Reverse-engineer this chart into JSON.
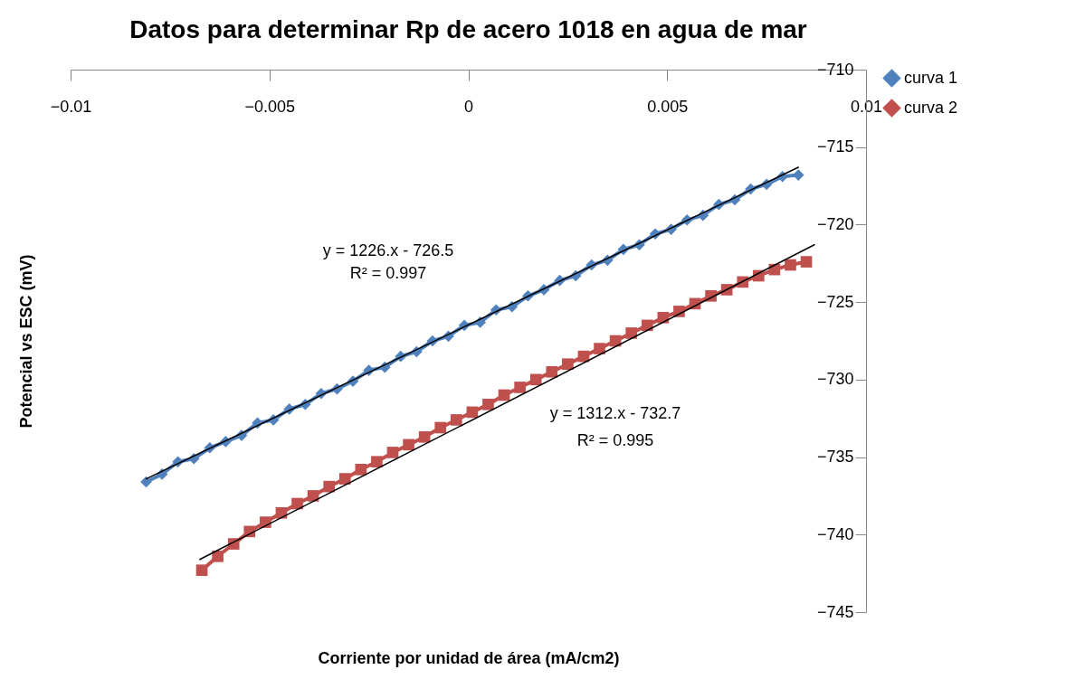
{
  "chart_data": {
    "type": "line",
    "title": "Datos para determinar Rp de acero 1018 en agua de mar",
    "xlabel": "Corriente por unidad de área (mA/cm2)",
    "ylabel": "Potencial vs ESC (mV)",
    "xlim": [
      -0.01,
      0.01
    ],
    "xticks": [
      -0.01,
      -0.005,
      0,
      0.005,
      0.01
    ],
    "ylim": [
      -745,
      -710
    ],
    "yticks": [
      -745,
      -740,
      -735,
      -730,
      -725,
      -720,
      -715,
      -710
    ],
    "grid": false,
    "legend": "right",
    "annotations": [
      "y = 1226.x - 726.5",
      "R² = 0.997",
      "y = 1312.x - 732.7",
      "R² = 0.995"
    ],
    "series": [
      {
        "name": "curva 1",
        "color": "#4f81bd",
        "marker": "diamond",
        "x": [
          -0.0081,
          -0.0077,
          -0.0073,
          -0.0069,
          -0.0065,
          -0.0061,
          -0.0057,
          -0.0053,
          -0.0049,
          -0.0045,
          -0.0041,
          -0.0037,
          -0.0033,
          -0.0029,
          -0.0025,
          -0.0021,
          -0.0017,
          -0.0013,
          -0.0009,
          -0.0005,
          -0.0001,
          0.0003,
          0.0007,
          0.0011,
          0.0015,
          0.0019,
          0.0023,
          0.0027,
          0.0031,
          0.0035,
          0.0039,
          0.0043,
          0.0047,
          0.0051,
          0.0055,
          0.0059,
          0.0063,
          0.0067,
          0.0071,
          0.0075,
          0.0079,
          0.0083
        ],
        "values": [
          -736.6,
          -736.1,
          -735.3,
          -735.1,
          -734.4,
          -734.0,
          -733.6,
          -732.8,
          -732.6,
          -731.9,
          -731.6,
          -730.9,
          -730.6,
          -730.1,
          -729.4,
          -729.2,
          -728.5,
          -728.2,
          -727.5,
          -727.2,
          -726.5,
          -726.3,
          -725.5,
          -725.3,
          -724.6,
          -724.2,
          -723.6,
          -723.3,
          -722.6,
          -722.3,
          -721.6,
          -721.3,
          -720.6,
          -720.3,
          -719.7,
          -719.4,
          -718.7,
          -718.4,
          -717.7,
          -717.4,
          -716.9,
          -716.8
        ]
      },
      {
        "name": "curva 2",
        "color": "#c0504d",
        "marker": "square",
        "x": [
          -0.0067,
          -0.0063,
          -0.0059,
          -0.0055,
          -0.0051,
          -0.0047,
          -0.0043,
          -0.0039,
          -0.0035,
          -0.0031,
          -0.0027,
          -0.0023,
          -0.0019,
          -0.0015,
          -0.0011,
          -0.0007,
          -0.0003,
          0.0001,
          0.0005,
          0.0009,
          0.0013,
          0.0017,
          0.0021,
          0.0025,
          0.0029,
          0.0033,
          0.0037,
          0.0041,
          0.0045,
          0.0049,
          0.0053,
          0.0057,
          0.0061,
          0.0065,
          0.0069,
          0.0073,
          0.0077,
          0.0081,
          0.0085
        ],
        "values": [
          -742.3,
          -741.4,
          -740.6,
          -739.8,
          -739.2,
          -738.6,
          -738.0,
          -737.5,
          -736.9,
          -736.4,
          -735.8,
          -735.3,
          -734.7,
          -734.2,
          -733.7,
          -733.1,
          -732.6,
          -732.1,
          -731.6,
          -731.0,
          -730.5,
          -730.0,
          -729.5,
          -729.0,
          -728.5,
          -728.0,
          -727.5,
          -727.0,
          -726.5,
          -726.0,
          -725.6,
          -725.1,
          -724.6,
          -724.2,
          -723.7,
          -723.3,
          -722.9,
          -722.6,
          -722.4
        ]
      },
      {
        "color": "#000000",
        "marker": "none",
        "x": [
          -0.0081,
          0.0083
        ],
        "values": [
          -736.4,
          -716.3
        ]
      },
      {
        "color": "#000000",
        "marker": "none",
        "x": [
          -0.00675,
          0.0087
        ],
        "values": [
          -741.6,
          -721.3
        ]
      }
    ]
  }
}
